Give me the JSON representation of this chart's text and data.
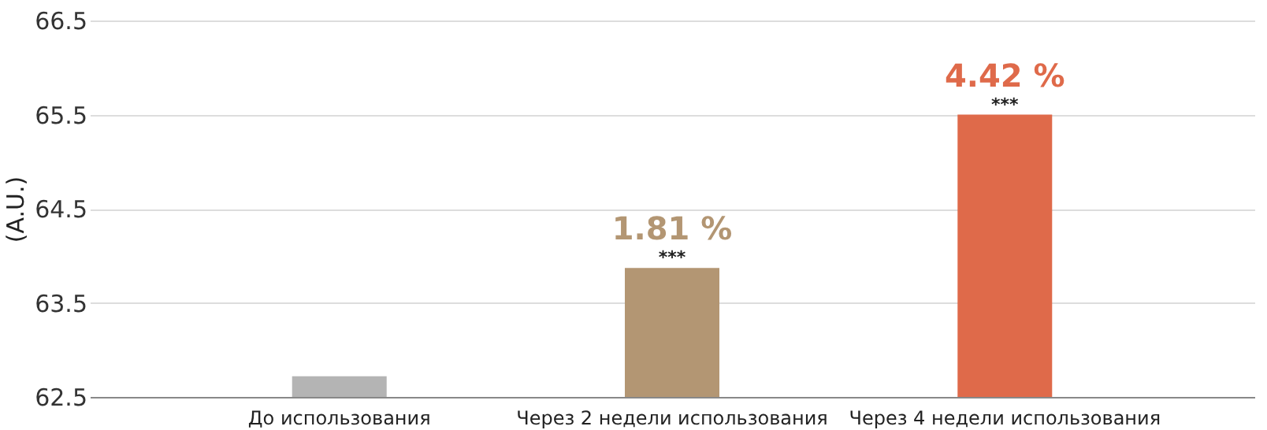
{
  "chart_data": {
    "type": "bar",
    "ylabel": "(A.U.)",
    "categories": [
      "До использования",
      "Через 2 недели использования",
      "Через 4 недели использования"
    ],
    "values": [
      62.72,
      63.87,
      65.5
    ],
    "colors": [
      "#b4b4b4",
      "#b39673",
      "#df6a4a"
    ],
    "annotations": [
      {
        "text": "1.81 %",
        "x": "Через 2 недели использования",
        "y": 63.87
      },
      {
        "text": "***",
        "x": "Через 2 недели использования",
        "y": 63.87
      },
      {
        "text": "4.42 %",
        "x": "Через 4 недели использования",
        "y": 65.5
      },
      {
        "text": "***",
        "x": "Через 4 недели использования",
        "y": 65.5
      }
    ],
    "ylim": [
      62.5,
      66.5
    ],
    "yticks": [
      62.5,
      63.5,
      64.5,
      65.5,
      66.5
    ],
    "grid": "y"
  }
}
